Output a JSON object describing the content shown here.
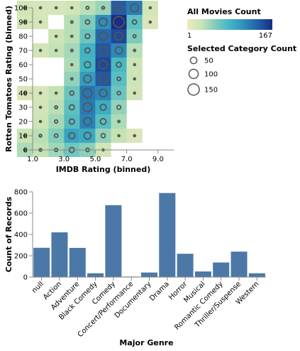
{
  "chart_data": [
    {
      "type": "heatmap",
      "xlabel": "IMDB Rating (binned)",
      "ylabel": "Rotten Tomatoes Rating (binned)",
      "x_ticks": [
        "1.0",
        "3.0",
        "5.0",
        "7.0",
        "9.0"
      ],
      "x_tick_values": [
        1,
        3,
        5,
        7,
        9
      ],
      "y_ticks": [
        "0",
        "10",
        "20",
        "30",
        "40",
        "50",
        "60",
        "70",
        "80",
        "90",
        "100"
      ],
      "y_tick_values": [
        0,
        10,
        20,
        30,
        40,
        50,
        60,
        70,
        80,
        90,
        100
      ],
      "xlim": [
        1,
        10
      ],
      "ylim": [
        0,
        100
      ],
      "x_bin_width": 1,
      "y_bin_width": 10,
      "grid": false,
      "color_legend": {
        "title": "All Movies Count",
        "min_label": "1",
        "max_label": "167",
        "min": 1,
        "max": 167,
        "scheme": [
          "#efe9bd",
          "#c8e4b5",
          "#7dcbbb",
          "#41b6c4",
          "#2c8fbd",
          "#225ea8",
          "#1a2c84"
        ]
      },
      "size_legend": {
        "title": "Selected Category Count",
        "labels": [
          "50",
          "100",
          "150"
        ],
        "values": [
          50,
          100,
          150
        ]
      },
      "cells": [
        {
          "x": 1,
          "y": 0,
          "count": 12,
          "selected": 3
        },
        {
          "x": 2,
          "y": 0,
          "count": 8,
          "selected": 8
        },
        {
          "x": 3,
          "y": 0,
          "count": 15,
          "selected": 12
        },
        {
          "x": 4,
          "y": 0,
          "count": 28,
          "selected": 30
        },
        {
          "x": 5,
          "y": 0,
          "count": 20,
          "selected": 14
        },
        {
          "x": 6,
          "y": 0,
          "count": 5,
          "selected": 2
        },
        {
          "x": 1,
          "y": 10,
          "count": 7,
          "selected": 0
        },
        {
          "x": 2,
          "y": 10,
          "count": 10,
          "selected": 8
        },
        {
          "x": 3,
          "y": 10,
          "count": 22,
          "selected": 15
        },
        {
          "x": 4,
          "y": 10,
          "count": 62,
          "selected": 45
        },
        {
          "x": 5,
          "y": 10,
          "count": 58,
          "selected": 55
        },
        {
          "x": 6,
          "y": 10,
          "count": 18,
          "selected": 20
        },
        {
          "x": 7,
          "y": 10,
          "count": 8,
          "selected": 4
        },
        {
          "x": 8,
          "y": 10,
          "count": 3,
          "selected": 2
        },
        {
          "x": 2,
          "y": 20,
          "count": 6,
          "selected": 2
        },
        {
          "x": 3,
          "y": 20,
          "count": 14,
          "selected": 12
        },
        {
          "x": 4,
          "y": 20,
          "count": 40,
          "selected": 32
        },
        {
          "x": 5,
          "y": 20,
          "count": 90,
          "selected": 70
        },
        {
          "x": 6,
          "y": 20,
          "count": 38,
          "selected": 40
        },
        {
          "x": 7,
          "y": 20,
          "count": 12,
          "selected": 5
        },
        {
          "x": 2,
          "y": 30,
          "count": 5,
          "selected": 1
        },
        {
          "x": 3,
          "y": 30,
          "count": 10,
          "selected": 9
        },
        {
          "x": 4,
          "y": 30,
          "count": 35,
          "selected": 30
        },
        {
          "x": 5,
          "y": 30,
          "count": 95,
          "selected": 95
        },
        {
          "x": 6,
          "y": 30,
          "count": 55,
          "selected": 42
        },
        {
          "x": 7,
          "y": 30,
          "count": 18,
          "selected": 18
        },
        {
          "x": 1,
          "y": 40,
          "count": 3,
          "selected": 1
        },
        {
          "x": 2,
          "y": 40,
          "count": 4,
          "selected": 1
        },
        {
          "x": 3,
          "y": 40,
          "count": 8,
          "selected": 3
        },
        {
          "x": 4,
          "y": 40,
          "count": 30,
          "selected": 20
        },
        {
          "x": 5,
          "y": 40,
          "count": 100,
          "selected": 95
        },
        {
          "x": 6,
          "y": 40,
          "count": 88,
          "selected": 70
        },
        {
          "x": 7,
          "y": 40,
          "count": 30,
          "selected": 15
        },
        {
          "x": 8,
          "y": 40,
          "count": 5,
          "selected": 2
        },
        {
          "x": 4,
          "y": 50,
          "count": 18,
          "selected": 5
        },
        {
          "x": 5,
          "y": 50,
          "count": 70,
          "selected": 65
        },
        {
          "x": 6,
          "y": 50,
          "count": 125,
          "selected": 90
        },
        {
          "x": 7,
          "y": 50,
          "count": 38,
          "selected": 15
        },
        {
          "x": 8,
          "y": 50,
          "count": 6,
          "selected": 2
        },
        {
          "x": 4,
          "y": 60,
          "count": 12,
          "selected": 2
        },
        {
          "x": 5,
          "y": 60,
          "count": 48,
          "selected": 45
        },
        {
          "x": 6,
          "y": 60,
          "count": 140,
          "selected": 88
        },
        {
          "x": 7,
          "y": 60,
          "count": 45,
          "selected": 30
        },
        {
          "x": 8,
          "y": 60,
          "count": 6,
          "selected": 1
        },
        {
          "x": 2,
          "y": 70,
          "count": 5,
          "selected": 1
        },
        {
          "x": 3,
          "y": 70,
          "count": 8,
          "selected": 1
        },
        {
          "x": 4,
          "y": 70,
          "count": 14,
          "selected": 6
        },
        {
          "x": 5,
          "y": 70,
          "count": 50,
          "selected": 30
        },
        {
          "x": 6,
          "y": 70,
          "count": 125,
          "selected": 80
        },
        {
          "x": 7,
          "y": 70,
          "count": 85,
          "selected": 60
        },
        {
          "x": 8,
          "y": 70,
          "count": 10,
          "selected": 5
        },
        {
          "x": 3,
          "y": 80,
          "count": 6,
          "selected": 2
        },
        {
          "x": 4,
          "y": 80,
          "count": 10,
          "selected": 3
        },
        {
          "x": 5,
          "y": 80,
          "count": 30,
          "selected": 25
        },
        {
          "x": 6,
          "y": 80,
          "count": 110,
          "selected": 78
        },
        {
          "x": 7,
          "y": 80,
          "count": 140,
          "selected": 75
        },
        {
          "x": 8,
          "y": 80,
          "count": 24,
          "selected": 10
        },
        {
          "x": 1,
          "y": 90,
          "count": 4,
          "selected": 1
        },
        {
          "x": 2,
          "y": 90,
          "count": 4,
          "selected": 1
        },
        {
          "x": 4,
          "y": 90,
          "count": 10,
          "selected": 6
        },
        {
          "x": 5,
          "y": 90,
          "count": 24,
          "selected": 22
        },
        {
          "x": 6,
          "y": 90,
          "count": 80,
          "selected": 75
        },
        {
          "x": 7,
          "y": 90,
          "count": 167,
          "selected": 135
        },
        {
          "x": 8,
          "y": 90,
          "count": 35,
          "selected": 22
        },
        {
          "x": 9,
          "y": 90,
          "count": 3,
          "selected": 1
        },
        {
          "x": 1,
          "y": 100,
          "count": 5,
          "selected": 2
        },
        {
          "x": 2,
          "y": 100,
          "count": 4,
          "selected": 1
        },
        {
          "x": 3,
          "y": 100,
          "count": 4,
          "selected": 1
        },
        {
          "x": 4,
          "y": 100,
          "count": 5,
          "selected": 1
        },
        {
          "x": 5,
          "y": 100,
          "count": 10,
          "selected": 10
        },
        {
          "x": 6,
          "y": 100,
          "count": 16,
          "selected": 8
        },
        {
          "x": 7,
          "y": 100,
          "count": 120,
          "selected": 75
        },
        {
          "x": 8,
          "y": 100,
          "count": 95,
          "selected": 75
        },
        {
          "x": 9,
          "y": 100,
          "count": 5,
          "selected": 1
        }
      ]
    },
    {
      "type": "bar",
      "xlabel": "Major Genre",
      "ylabel": "Count of Records",
      "ylim": [
        0,
        800
      ],
      "y_ticks": [
        0,
        200,
        400,
        600,
        800
      ],
      "grid": false,
      "bar_color": "#4c78a8",
      "categories": [
        "null",
        "Action",
        "Adventure",
        "Black Comedy",
        "Comedy",
        "Concert/Performance",
        "Documentary",
        "Drama",
        "Horror",
        "Musical",
        "Romantic Comedy",
        "Thriller/Suspense",
        "Western"
      ],
      "values": [
        275,
        420,
        274,
        36,
        675,
        5,
        43,
        789,
        219,
        53,
        137,
        239,
        36
      ]
    }
  ]
}
